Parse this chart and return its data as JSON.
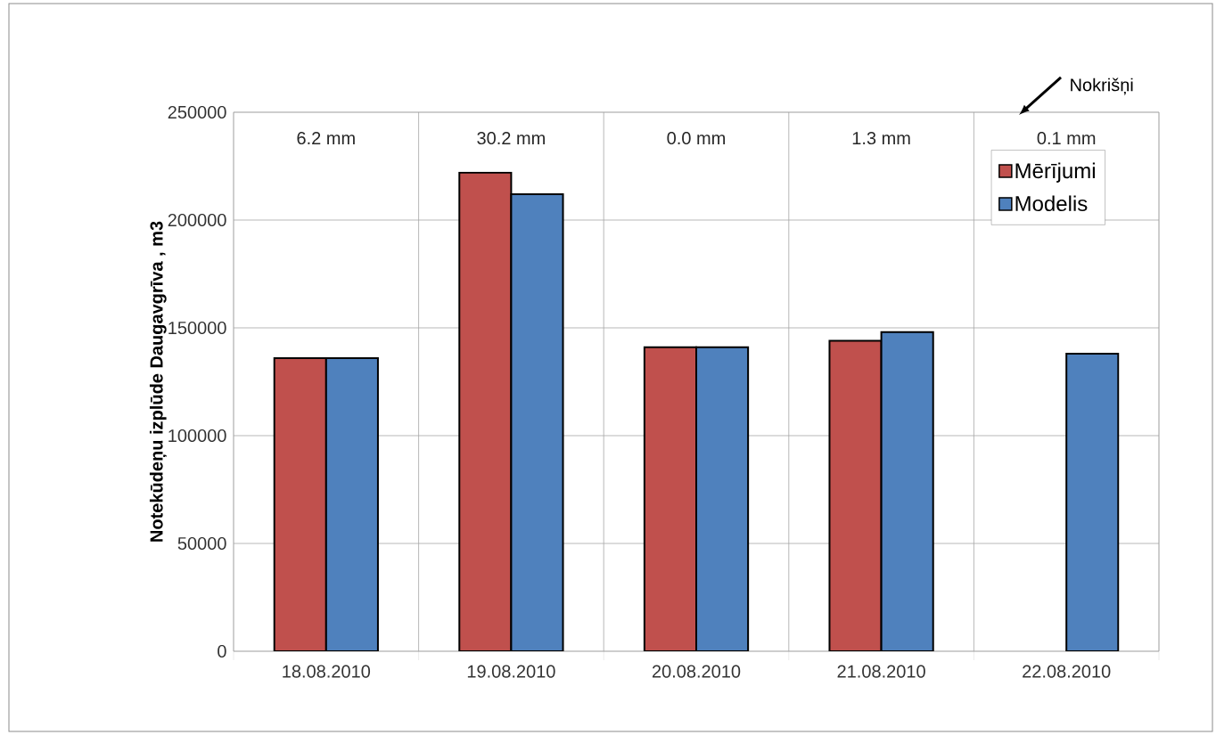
{
  "chart_data": {
    "type": "bar",
    "ylabel": "Notekūdeņu izplūde Daugavgrīva , m3",
    "categories": [
      "18.08.2010",
      "19.08.2010",
      "20.08.2010",
      "21.08.2010",
      "22.08.2010"
    ],
    "series": [
      {
        "name": "Mērījumi",
        "color": "#c0504d",
        "values": [
          136000,
          222000,
          141000,
          144000,
          null
        ]
      },
      {
        "name": "Modelis",
        "color": "#4f81bd",
        "values": [
          136000,
          212000,
          141000,
          148000,
          138000
        ]
      }
    ],
    "ylim": [
      0,
      250000
    ],
    "yticks": [
      0,
      50000,
      100000,
      150000,
      200000,
      250000
    ],
    "grid": true,
    "legend": "top right",
    "annotations": [
      "6.2 mm",
      "30.2 mm",
      "0.0 mm",
      "1.3 mm",
      "0.1 mm",
      "Nokrišņi"
    ]
  }
}
